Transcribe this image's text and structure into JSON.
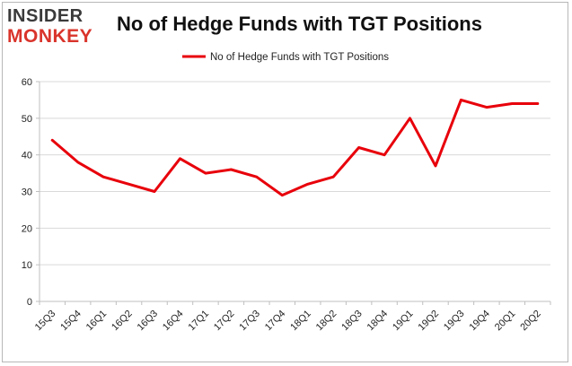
{
  "logo": {
    "line1": "INSIDER",
    "line2": "MONKEY"
  },
  "colors": {
    "series": "#e8000b",
    "logo_dark": "#3a3a3a",
    "logo_red": "#d9342b",
    "grid": "#d9d9d9",
    "axis": "#bfbfbf"
  },
  "chart_data": {
    "type": "line",
    "title": "No of Hedge Funds with TGT Positions",
    "xlabel": "",
    "ylabel": "",
    "categories": [
      "15Q3",
      "15Q4",
      "16Q1",
      "16Q2",
      "16Q3",
      "16Q4",
      "17Q1",
      "17Q2",
      "17Q3",
      "17Q4",
      "18Q1",
      "18Q2",
      "18Q3",
      "18Q4",
      "19Q1",
      "19Q2",
      "19Q3",
      "19Q4",
      "20Q1",
      "20Q2"
    ],
    "series": [
      {
        "name": "No of Hedge Funds with TGT Positions",
        "values": [
          44,
          38,
          34,
          32,
          30,
          39,
          35,
          36,
          34,
          29,
          32,
          34,
          42,
          40,
          50,
          37,
          55,
          53,
          54,
          54
        ]
      }
    ],
    "ylim": [
      0,
      60
    ],
    "yticks": [
      0,
      10,
      20,
      30,
      40,
      50,
      60
    ],
    "grid": true,
    "legend": "top-center"
  }
}
